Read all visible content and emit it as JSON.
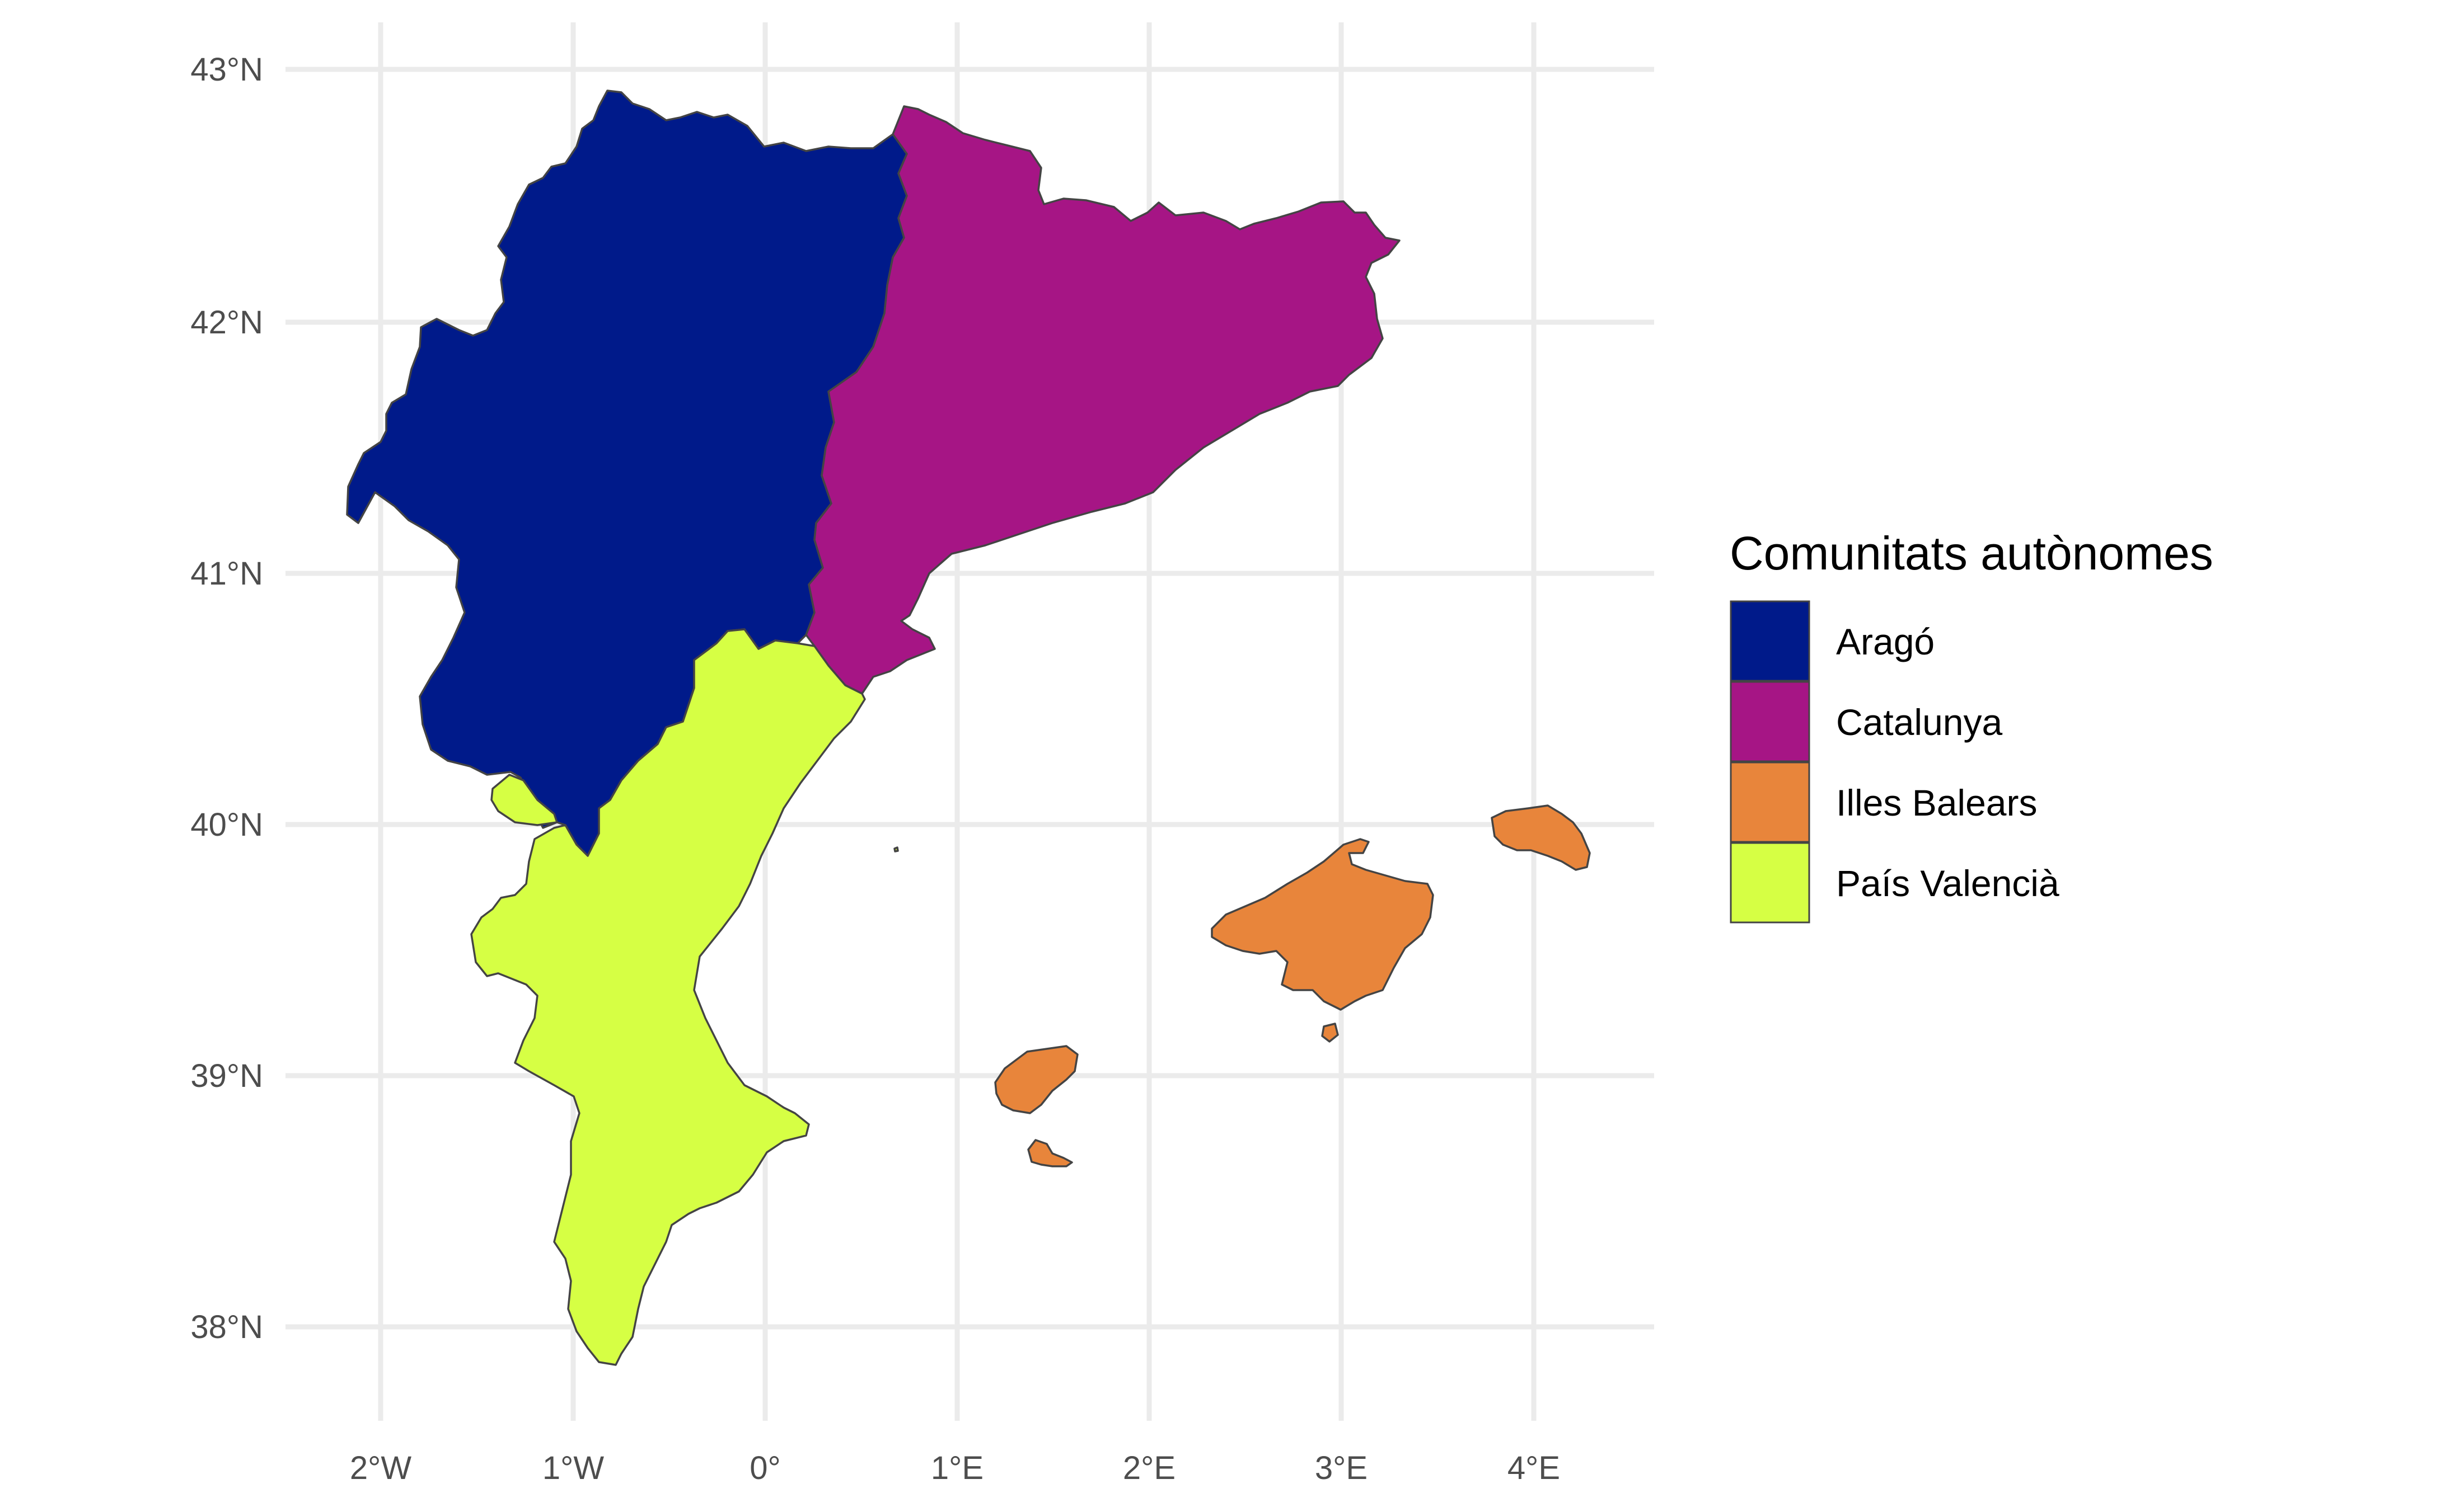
{
  "map": {
    "x_ticks": [
      "2°W",
      "1°W",
      "0°",
      "1°E",
      "2°E",
      "3°E",
      "4°E"
    ],
    "y_ticks": [
      "43°N",
      "42°N",
      "41°N",
      "40°N",
      "39°N",
      "38°N"
    ]
  },
  "legend": {
    "title": "Comunitats autònomes",
    "items": [
      {
        "label": "Aragó",
        "color": "#001a8a"
      },
      {
        "label": "Catalunya",
        "color": "#a61585"
      },
      {
        "label": "Illes Balears",
        "color": "#e8853b"
      },
      {
        "label": "País Valencià",
        "color": "#d6ff44"
      }
    ]
  },
  "chart_data": {
    "type": "choropleth",
    "x_axis_ticks": [
      "2°W",
      "1°W",
      "0°",
      "1°E",
      "2°E",
      "3°E",
      "4°E"
    ],
    "y_axis_ticks": [
      "43°N",
      "42°N",
      "41°N",
      "40°N",
      "39°N",
      "38°N"
    ],
    "lon_range": [
      -2.4,
      4.5
    ],
    "lat_range": [
      37.8,
      43.0
    ],
    "grid": true,
    "legend_placement": "right",
    "regions": [
      "Aragó",
      "Catalunya",
      "Illes Balears",
      "País Valencià"
    ]
  }
}
